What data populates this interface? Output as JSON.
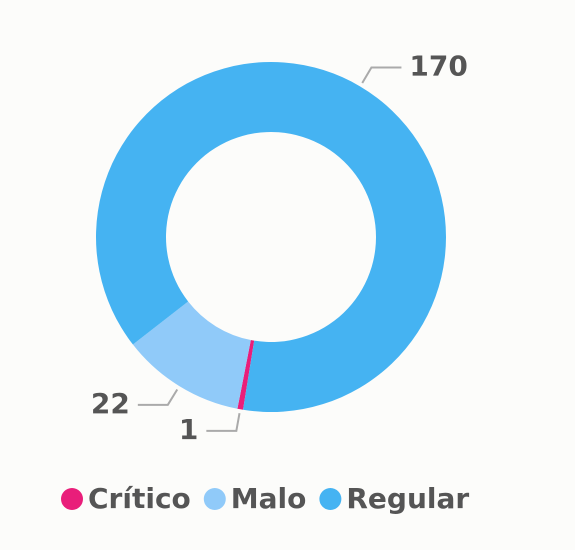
{
  "chart_data": {
    "type": "donut",
    "categories": [
      "Crítico",
      "Malo",
      "Regular"
    ],
    "values": [
      1,
      22,
      170
    ],
    "colors": [
      "#e91e7a",
      "#90caf9",
      "#45b3f2"
    ]
  }
}
